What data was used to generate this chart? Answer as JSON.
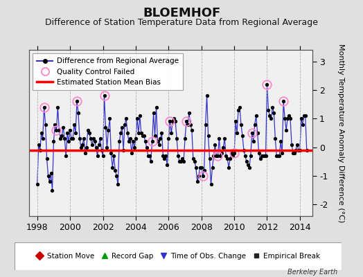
{
  "title": "BLOEMHOF",
  "subtitle": "Difference of Station Temperature Data from Regional Average",
  "ylabel": "Monthly Temperature Anomaly Difference (°C)",
  "xlabel_years": [
    1998,
    2000,
    2002,
    2004,
    2006,
    2008,
    2010,
    2012,
    2014
  ],
  "xlim": [
    1997.5,
    2014.75
  ],
  "ylim": [
    -2.4,
    3.4
  ],
  "yticks": [
    -2,
    -1,
    0,
    1,
    2,
    3
  ],
  "bias_line": -0.1,
  "background_color": "#e0e0e0",
  "plot_bg_color": "#f0f0f0",
  "grid_color": "#b0b0b0",
  "line_color": "#3333cc",
  "marker_color": "#000000",
  "bias_color": "#ff0000",
  "qc_circle_color": "#ff88cc",
  "footer_text": "Berkeley Earth",
  "time_series": [
    1998.0,
    1998.083,
    1998.167,
    1998.25,
    1998.333,
    1998.417,
    1998.5,
    1998.583,
    1998.667,
    1998.75,
    1998.833,
    1998.917,
    1999.0,
    1999.083,
    1999.167,
    1999.25,
    1999.333,
    1999.417,
    1999.5,
    1999.583,
    1999.667,
    1999.75,
    1999.833,
    1999.917,
    2000.0,
    2000.083,
    2000.167,
    2000.25,
    2000.333,
    2000.417,
    2000.5,
    2000.583,
    2000.667,
    2000.75,
    2000.833,
    2000.917,
    2001.0,
    2001.083,
    2001.167,
    2001.25,
    2001.333,
    2001.417,
    2001.5,
    2001.583,
    2001.667,
    2001.75,
    2001.833,
    2001.917,
    2002.0,
    2002.083,
    2002.167,
    2002.25,
    2002.333,
    2002.417,
    2002.5,
    2002.583,
    2002.667,
    2002.75,
    2002.833,
    2002.917,
    2003.0,
    2003.083,
    2003.167,
    2003.25,
    2003.333,
    2003.417,
    2003.5,
    2003.583,
    2003.667,
    2003.75,
    2003.833,
    2003.917,
    2004.0,
    2004.083,
    2004.167,
    2004.25,
    2004.333,
    2004.417,
    2004.5,
    2004.583,
    2004.667,
    2004.75,
    2004.833,
    2004.917,
    2005.0,
    2005.083,
    2005.167,
    2005.25,
    2005.333,
    2005.417,
    2005.5,
    2005.583,
    2005.667,
    2005.75,
    2005.833,
    2005.917,
    2006.0,
    2006.083,
    2006.167,
    2006.25,
    2006.333,
    2006.417,
    2006.5,
    2006.583,
    2006.667,
    2006.75,
    2006.833,
    2006.917,
    2007.0,
    2007.083,
    2007.167,
    2007.25,
    2007.333,
    2007.417,
    2007.5,
    2007.583,
    2007.667,
    2007.75,
    2007.833,
    2007.917,
    2008.0,
    2008.083,
    2008.167,
    2008.25,
    2008.333,
    2008.417,
    2008.5,
    2008.583,
    2008.667,
    2008.75,
    2008.833,
    2008.917,
    2009.0,
    2009.083,
    2009.167,
    2009.25,
    2009.333,
    2009.417,
    2009.5,
    2009.583,
    2009.667,
    2009.75,
    2009.833,
    2009.917,
    2010.0,
    2010.083,
    2010.167,
    2010.25,
    2010.333,
    2010.417,
    2010.5,
    2010.583,
    2010.667,
    2010.75,
    2010.833,
    2010.917,
    2011.0,
    2011.083,
    2011.167,
    2011.25,
    2011.333,
    2011.417,
    2011.5,
    2011.583,
    2011.667,
    2011.75,
    2011.833,
    2011.917,
    2012.0,
    2012.083,
    2012.167,
    2012.25,
    2012.333,
    2012.417,
    2012.5,
    2012.583,
    2012.667,
    2012.75,
    2012.833,
    2012.917,
    2013.0,
    2013.083,
    2013.167,
    2013.25,
    2013.333,
    2013.417,
    2013.5,
    2013.583,
    2013.667,
    2013.75,
    2013.833,
    2013.917,
    2014.0,
    2014.083,
    2014.167,
    2014.25,
    2014.333,
    2014.417
  ],
  "values": [
    -1.3,
    0.1,
    -0.1,
    0.5,
    0.3,
    1.4,
    0.8,
    -0.4,
    -1.0,
    -1.2,
    -0.9,
    -1.5,
    0.2,
    0.8,
    0.6,
    1.4,
    0.6,
    0.3,
    0.4,
    0.7,
    0.3,
    -0.3,
    0.5,
    0.2,
    0.6,
    0.3,
    0.3,
    0.8,
    0.5,
    1.6,
    1.2,
    0.3,
    0.0,
    0.1,
    0.3,
    -0.2,
    0.0,
    0.6,
    0.5,
    0.3,
    0.1,
    0.3,
    0.2,
    0.0,
    -0.3,
    0.1,
    0.3,
    -0.1,
    -0.3,
    1.8,
    0.7,
    0.0,
    0.6,
    1.0,
    -0.2,
    -0.7,
    -0.3,
    -0.8,
    -1.0,
    -1.3,
    0.2,
    0.5,
    0.7,
    -0.1,
    0.8,
    1.0,
    0.5,
    0.2,
    0.3,
    -0.2,
    0.2,
    0.0,
    0.3,
    1.0,
    0.5,
    1.1,
    0.5,
    0.4,
    0.4,
    0.2,
    0.0,
    -0.3,
    -0.3,
    -0.5,
    0.2,
    1.2,
    0.4,
    1.4,
    0.2,
    0.1,
    0.3,
    0.5,
    -0.3,
    -0.4,
    -0.3,
    -0.6,
    0.3,
    0.9,
    0.5,
    0.9,
    1.0,
    0.9,
    0.3,
    -0.3,
    -0.5,
    -0.5,
    -0.4,
    -0.5,
    0.3,
    0.9,
    0.8,
    1.2,
    0.8,
    0.6,
    -0.4,
    -0.5,
    -0.7,
    -1.2,
    -1.0,
    -0.7,
    -0.7,
    -1.0,
    -0.8,
    0.8,
    1.8,
    0.4,
    -0.4,
    -1.3,
    -0.7,
    -0.3,
    0.1,
    -0.3,
    -0.3,
    0.3,
    -0.3,
    -0.2,
    0.0,
    0.3,
    -0.3,
    -0.4,
    -0.7,
    -0.4,
    -0.2,
    -0.3,
    -0.2,
    0.9,
    0.5,
    1.3,
    1.4,
    0.8,
    0.4,
    -0.1,
    -0.3,
    -0.5,
    -0.6,
    -0.7,
    -0.3,
    0.5,
    0.2,
    0.8,
    1.1,
    0.5,
    -0.2,
    -0.4,
    -0.3,
    -0.3,
    -0.3,
    -0.3,
    2.2,
    1.3,
    1.1,
    1.0,
    1.4,
    1.2,
    0.3,
    -0.3,
    -0.3,
    -0.3,
    0.2,
    -0.2,
    1.6,
    1.0,
    0.6,
    1.0,
    1.1,
    1.0,
    0.1,
    -0.2,
    -0.2,
    -0.1,
    0.1,
    -0.1,
    -0.1,
    1.0,
    0.8,
    1.1,
    1.1,
    -0.1
  ],
  "qc_failed_indices": [
    5,
    14,
    29,
    49,
    84,
    97,
    109,
    121,
    132,
    144,
    157,
    168,
    180
  ],
  "title_fontsize": 13,
  "subtitle_fontsize": 9,
  "tick_fontsize": 9,
  "ylabel_fontsize": 8
}
